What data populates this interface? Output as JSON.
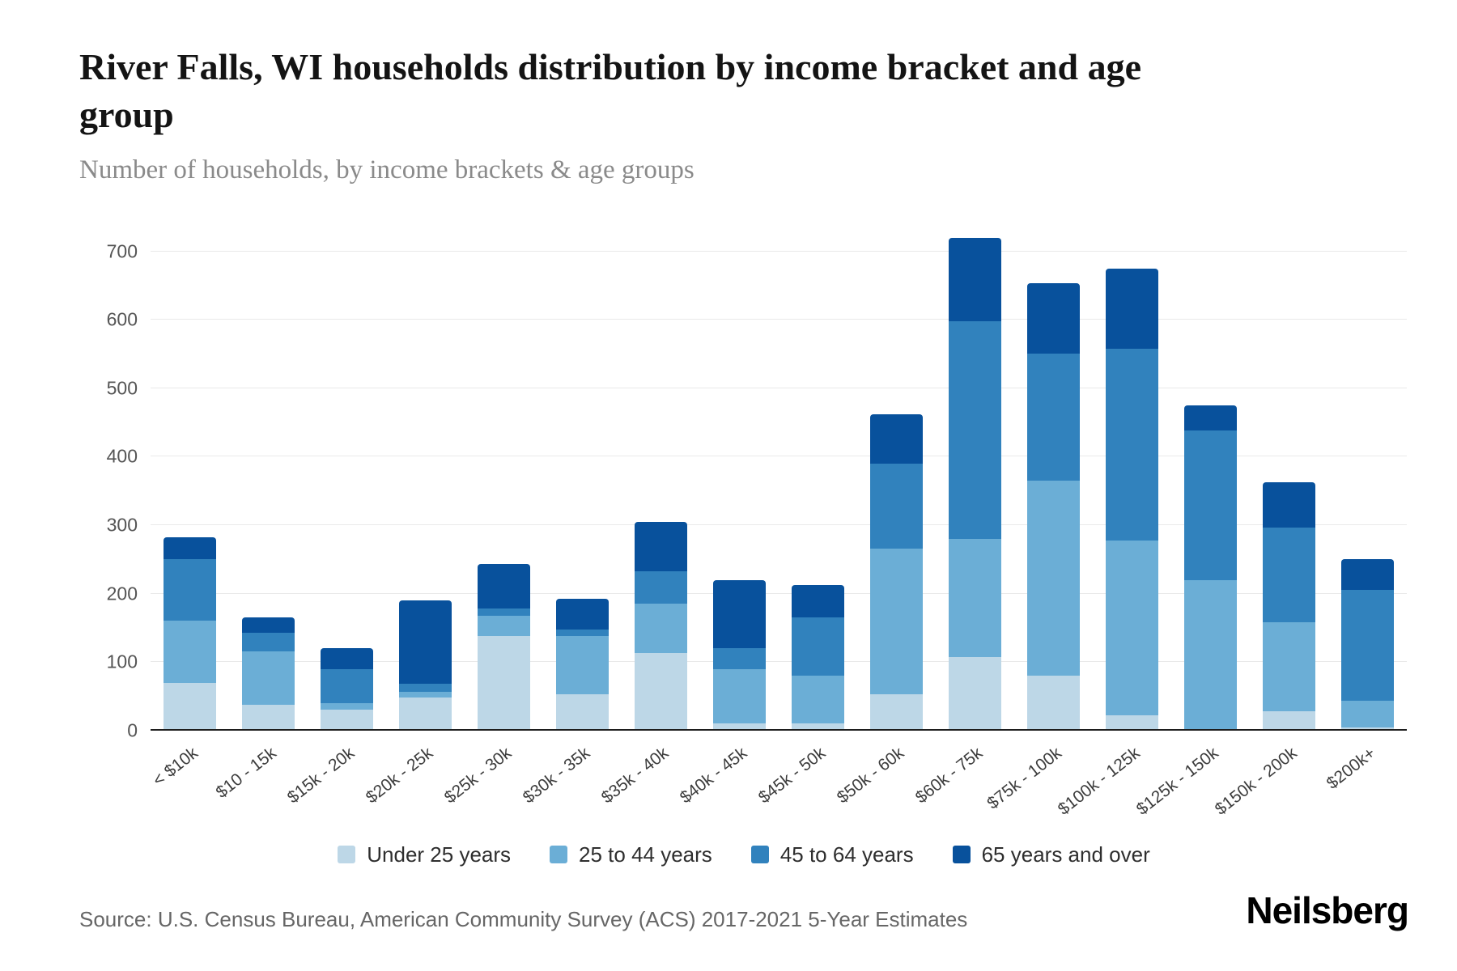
{
  "chart_data": {
    "type": "bar",
    "stacked": true,
    "title": "River Falls, WI households distribution by income bracket and age group",
    "subtitle": "Number of households, by income brackets & age groups",
    "xlabel": "",
    "ylabel": "",
    "ylim": [
      0,
      700
    ],
    "scale_max": 740,
    "yticks": [
      0,
      100,
      200,
      300,
      400,
      500,
      600,
      700
    ],
    "grid": true,
    "legend_position": "bottom",
    "categories": [
      "< $10k",
      "$10 - 15k",
      "$15k - 20k",
      "$20k - 25k",
      "$25k - 30k",
      "$30k - 35k",
      "$35k - 40k",
      "$40k - 45k",
      "$45k - 50k",
      "$50k - 60k",
      "$60k - 75k",
      "$75k - 100k",
      "$100k - 125k",
      "$125k - 150k",
      "$150k - 200k",
      "$200k+"
    ],
    "series": [
      {
        "name": "Under 25 years",
        "color": "#bdd7e7",
        "values": [
          70,
          38,
          30,
          48,
          138,
          53,
          113,
          10,
          10,
          53,
          107,
          80,
          22,
          0,
          28,
          5
        ]
      },
      {
        "name": "25 to 44 years",
        "color": "#6baed6",
        "values": [
          90,
          77,
          10,
          8,
          30,
          85,
          72,
          80,
          70,
          213,
          173,
          285,
          256,
          220,
          130,
          38
        ]
      },
      {
        "name": "45 to 64 years",
        "color": "#3182bd",
        "values": [
          90,
          28,
          50,
          12,
          10,
          10,
          48,
          30,
          85,
          124,
          318,
          186,
          280,
          218,
          138,
          162
        ]
      },
      {
        "name": "65 years and over",
        "color": "#08519c",
        "values": [
          32,
          22,
          30,
          122,
          65,
          44,
          72,
          100,
          47,
          72,
          122,
          102,
          117,
          37,
          67,
          45
        ]
      }
    ]
  },
  "footer": {
    "source": "Source: U.S. Census Bureau, American Community Survey (ACS) 2017-2021 5-Year Estimates",
    "brand": "Neilsberg"
  }
}
